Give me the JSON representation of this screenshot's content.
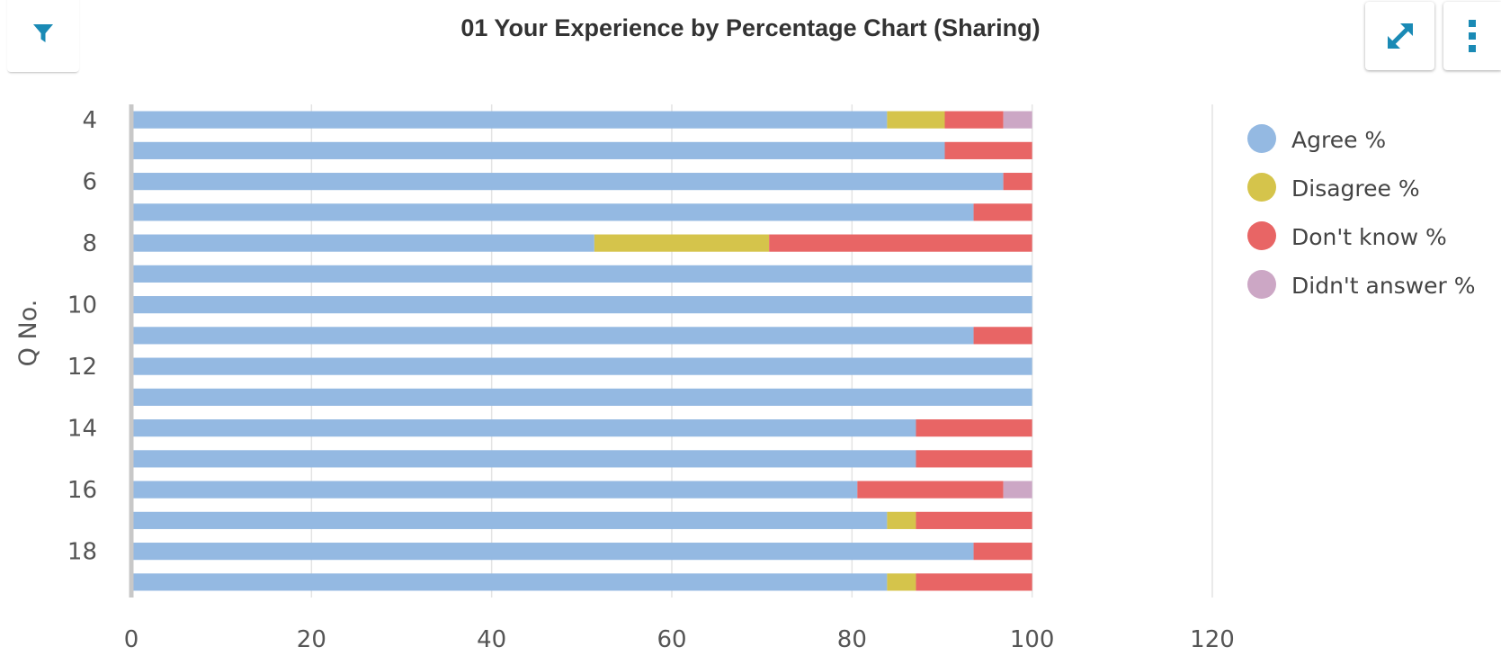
{
  "chart_data": {
    "type": "bar",
    "orientation": "horizontal",
    "stacked": true,
    "title": "01 Your Experience by Percentage Chart (Sharing)",
    "xlabel": "",
    "ylabel": "Q No.",
    "xlim": [
      0,
      120
    ],
    "xticks": [
      "0",
      "20",
      "40",
      "60",
      "80",
      "100",
      "120"
    ],
    "categories": [
      "4",
      "5",
      "6",
      "7",
      "8",
      "9",
      "10",
      "11",
      "12",
      "13",
      "14",
      "15",
      "16",
      "17",
      "18",
      "19"
    ],
    "ytick_labels": [
      "4",
      "",
      "6",
      "",
      "8",
      "",
      "10",
      "",
      "12",
      "",
      "14",
      "",
      "16",
      "",
      "18",
      ""
    ],
    "grid": "vertical",
    "legend_position": "right",
    "series": [
      {
        "name": "Agree %",
        "color": "#94b9e2",
        "values": [
          83.9,
          90.3,
          96.8,
          93.5,
          51.4,
          100,
          100,
          93.5,
          100,
          100,
          87.1,
          87.1,
          80.6,
          83.9,
          93.5,
          83.9
        ]
      },
      {
        "name": "Disagree %",
        "color": "#d5c44b",
        "values": [
          6.4,
          0,
          0,
          0,
          19.4,
          0,
          0,
          0,
          0,
          0,
          0,
          0,
          0,
          3.2,
          0,
          3.2
        ]
      },
      {
        "name": "Don't know %",
        "color": "#e86565",
        "values": [
          6.5,
          9.7,
          3.2,
          6.5,
          29.2,
          0,
          0,
          6.5,
          0,
          0,
          12.9,
          12.9,
          16.2,
          12.9,
          6.5,
          12.9
        ]
      },
      {
        "name": "Didn't answer %",
        "color": "#cca7c5",
        "values": [
          3.2,
          0,
          0,
          0,
          0,
          0,
          0,
          0,
          0,
          0,
          0,
          0,
          3.2,
          0,
          0,
          0
        ]
      }
    ]
  },
  "toolbar": {
    "filter_icon": "filter-icon",
    "expand_icon": "expand-arrows-icon",
    "menu_icon": "vertical-dots-icon",
    "accent_color": "#1a8ab5"
  }
}
